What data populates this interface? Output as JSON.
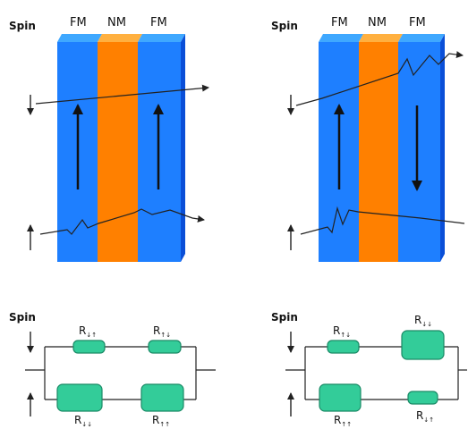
{
  "labels": {
    "spin": "Spin",
    "fm": "FM",
    "nm": "NM"
  },
  "resistor_labels": {
    "left_top_1": "R",
    "left_top_2": "R",
    "left_bottom_1": "R",
    "left_bottom_2": "R",
    "right_top_1": "R",
    "right_top_2": "R",
    "right_bottom_1": "R",
    "right_bottom_2": "R",
    "sub_ud": "↓↑",
    "sub_du": "↑↓",
    "sub_dd": "↓↓",
    "sub_uu": "↑↑"
  },
  "colors": {
    "fm_layer": "#1e7fff",
    "fm_top": "#3fa8ff",
    "fm_side": "#0a4fd8",
    "nm_layer": "#ff8000",
    "nm_top": "#ffb040",
    "resistor_fill": "#33cc99",
    "resistor_stroke": "#1a8a66",
    "line": "#222222"
  }
}
